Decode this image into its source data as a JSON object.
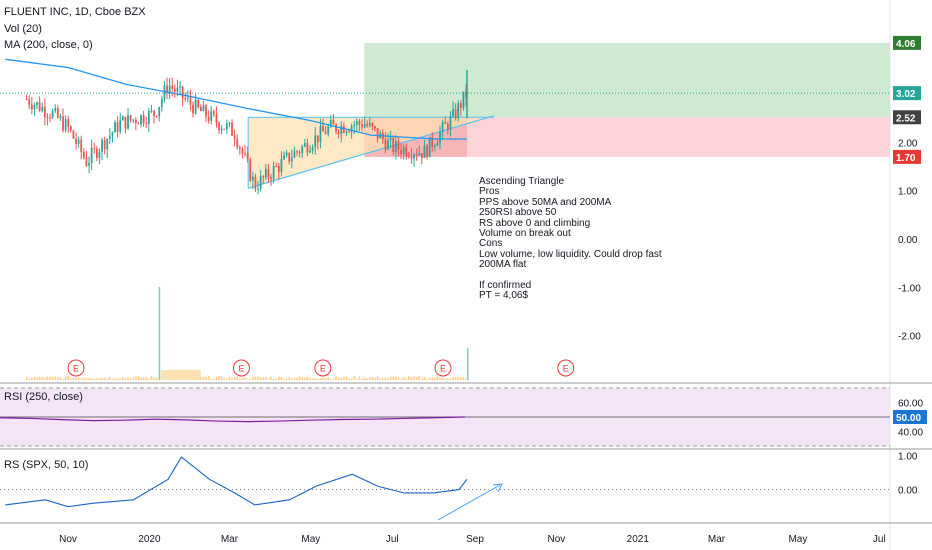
{
  "header": {
    "symbol_line": "FLUENT INC, 1D, Cboe BZX",
    "volume_line": "Vol (20)",
    "ma_line": "MA (200, close, 0)"
  },
  "annotation": {
    "lines": [
      "Ascending Triangle",
      "Pros",
      "PPS above 50MA and 200MA",
      "250RSI above 50",
      "RS above 0 and climbing",
      "Volume on break out",
      "Cons",
      "Low volume, low liquidity. Could drop fast",
      "200MA flat",
      "",
      "If confirmed",
      "PT = 4,06$"
    ]
  },
  "panes": {
    "rsi_label": "RSI (250, close)",
    "rs_label": "RS (SPX, 50, 10)"
  },
  "colors": {
    "up": "#26a69a",
    "down": "#ef5350",
    "ma": "#2196f3",
    "target_zone": "#c8e6c9",
    "stop_zone": "#ffcdd2",
    "triangle_fill": "#ffe0b2",
    "rsi_line": "#7b1fa2",
    "rsi_band": "#f3e5f5",
    "rs_line": "#1565c0",
    "price_tag_green": "#2e7d32",
    "price_tag_red": "#e53935",
    "price_tag_dark": "#424242",
    "rsi_tag": "#1976d2"
  },
  "chart_data": [
    {
      "type": "candlestick",
      "title": "FLUENT INC, 1D, Cboe BZX",
      "x_tick_labels": [
        "Nov",
        "2020",
        "Mar",
        "May",
        "Jul",
        "Sep",
        "Nov",
        "2021",
        "Mar",
        "May",
        "Jul"
      ],
      "y_tick_labels": [
        "2.00",
        "1.00",
        "0.00",
        "-1.00",
        "-2.00"
      ],
      "ylim": [
        -2.6,
        4.4
      ],
      "price_levels": {
        "target": 4.06,
        "current": 3.02,
        "breakout": 2.52,
        "stop": 1.7
      },
      "price_tags": [
        "4.06",
        "3.02",
        "2.52",
        "1.70"
      ],
      "approx_close_path": {
        "dates": [
          "2019-10-01",
          "2019-10-20",
          "2019-11-01",
          "2019-11-15",
          "2019-12-10",
          "2020-01-05",
          "2020-01-15",
          "2020-02-05",
          "2020-03-05",
          "2020-03-20",
          "2020-04-15",
          "2020-05-15",
          "2020-06-10",
          "2020-07-01",
          "2020-07-25",
          "2020-08-15",
          "2020-08-26"
        ],
        "close": [
          2.9,
          2.6,
          2.3,
          1.6,
          2.4,
          2.6,
          3.2,
          2.7,
          2.2,
          1.1,
          1.7,
          2.3,
          2.4,
          1.9,
          1.8,
          2.5,
          3.02
        ]
      },
      "series": [
        {
          "name": "MA (200, close, 0)",
          "dates": [
            "2019-09-15",
            "2019-11-01",
            "2019-12-15",
            "2020-02-01",
            "2020-03-15",
            "2020-05-01",
            "2020-06-15",
            "2020-08-01",
            "2020-08-26"
          ],
          "values": [
            3.72,
            3.55,
            3.2,
            2.95,
            2.7,
            2.45,
            2.15,
            2.07,
            2.07
          ]
        }
      ],
      "patterns": {
        "ascending_triangle": {
          "start": "2020-03-15",
          "end": "2020-09-15",
          "resistance": 2.52,
          "support_start": 1.05,
          "support_end": 2.55
        },
        "long_position": {
          "start": "2020-06-10",
          "end": "2021-07-01",
          "entry": 2.52,
          "target": 4.06,
          "stop": 1.7
        }
      },
      "earnings_markers": [
        "E",
        "E",
        "E",
        "E",
        "E"
      ],
      "earnings_dates": [
        "2019-11-07",
        "2020-03-10",
        "2020-05-10",
        "2020-08-08",
        "2020-11-08"
      ]
    },
    {
      "type": "line",
      "title": "RSI (250, close)",
      "y_tick_labels": [
        "60.00",
        "50.00",
        "40.00"
      ],
      "ylim": [
        30,
        70
      ],
      "series": [
        {
          "name": "RSI (250, close)",
          "values": [
            49.5,
            49.0,
            48.2,
            47.5,
            47.8,
            48.5,
            48.0,
            47.2,
            46.8,
            47.2,
            47.8,
            48.3,
            48.5,
            49.0,
            49.5,
            50.0
          ]
        }
      ],
      "band": [
        30,
        70
      ],
      "reference_line": 50,
      "value_tag": "50.00"
    },
    {
      "type": "line",
      "title": "RS (SPX, 50, 10)",
      "y_tick_labels": [
        "1.00",
        "0.00"
      ],
      "ylim": [
        -0.95,
        1.1
      ],
      "reference_line": 0,
      "series": [
        {
          "name": "RS (SPX, 50, 10)",
          "dates": [
            "2019-09-15",
            "2019-10-15",
            "2019-11-01",
            "2019-11-20",
            "2019-12-20",
            "2020-01-15",
            "2020-01-25",
            "2020-02-15",
            "2020-03-05",
            "2020-03-20",
            "2020-04-15",
            "2020-05-05",
            "2020-06-01",
            "2020-06-20",
            "2020-07-10",
            "2020-08-01",
            "2020-08-20",
            "2020-08-26"
          ],
          "values": [
            -0.45,
            -0.3,
            -0.5,
            -0.4,
            -0.3,
            0.3,
            0.95,
            0.3,
            -0.1,
            -0.45,
            -0.3,
            0.1,
            0.45,
            0.1,
            -0.1,
            -0.1,
            0.0,
            0.3
          ]
        }
      ]
    }
  ]
}
